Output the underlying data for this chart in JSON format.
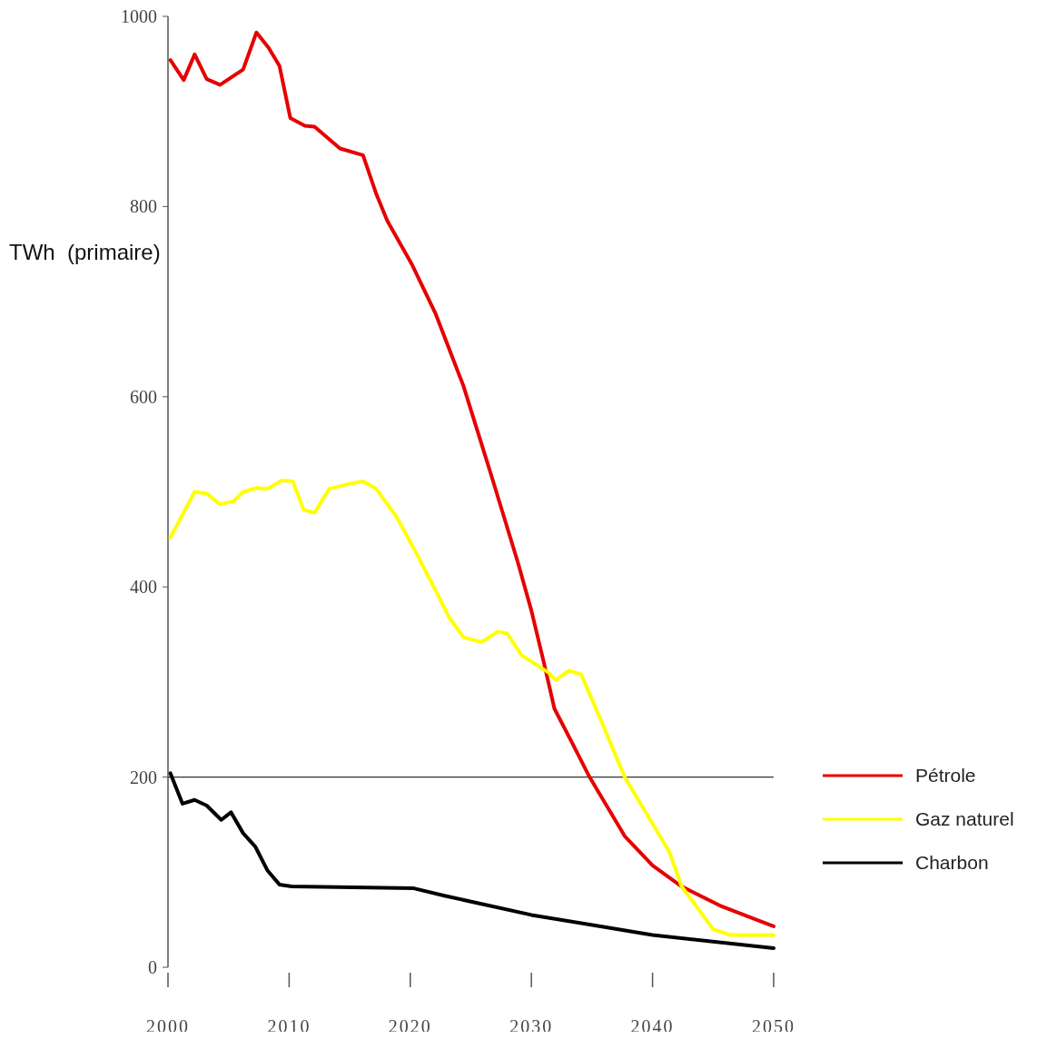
{
  "chart_data": {
    "type": "line",
    "ylabel": "TWh  (primaire)",
    "xlim": [
      2000,
      2050
    ],
    "xticks": [
      2000,
      2010,
      2020,
      2030,
      2040,
      2050
    ],
    "ylim": [
      0,
      1000
    ],
    "yticks": [
      0,
      200,
      400,
      600,
      800,
      1000
    ],
    "grid": false,
    "legend": "right",
    "marker": "none",
    "line_style": "solid",
    "ref_lines": [
      {
        "axis": "y",
        "value": 200,
        "color": "#333333"
      }
    ],
    "series": [
      {
        "name": "Pétrole",
        "color": "#e60000",
        "x": [
          2000.2,
          2001.3,
          2002.2,
          2003.2,
          2004.3,
          2006.2,
          2007.3,
          2008.3,
          2009.2,
          2010.1,
          2011.3,
          2012.1,
          2014.2,
          2016.1,
          2017.2,
          2018.1,
          2020.1,
          2022.1,
          2024.4,
          2026.6,
          2028.9,
          2030,
          2031,
          2031.9,
          2033.4,
          2034.8,
          2037.7,
          2040,
          2042.4,
          2045.7,
          2050
        ],
        "values": [
          954,
          933,
          960,
          934,
          928,
          944,
          983,
          967,
          948,
          893,
          885,
          884,
          861,
          854,
          813,
          785,
          740,
          687,
          611,
          521,
          425,
          375,
          322,
          272,
          235,
          200,
          138,
          107,
          85,
          64,
          43
        ]
      },
      {
        "name": "Gaz naturel",
        "color": "#ffff00",
        "x": [
          2000.2,
          2002.2,
          2003.2,
          2004.3,
          2005.4,
          2006.2,
          2007.3,
          2008.2,
          2009.4,
          2010.3,
          2011.2,
          2012.1,
          2013.3,
          2014.8,
          2016.1,
          2017.2,
          2018.9,
          2020.6,
          2022.1,
          2023.2,
          2024.4,
          2025.9,
          2026.4,
          2027.2,
          2028,
          2029.2,
          2031.4,
          2032,
          2033.1,
          2034.1,
          2035.8,
          2037.7,
          2040,
          2041.4,
          2042.4,
          2045,
          2046.4,
          2050
        ],
        "values": [
          452,
          500,
          498,
          487,
          490,
          500,
          504,
          503,
          512,
          511,
          481,
          478,
          503,
          508,
          511,
          503,
          473,
          433,
          396,
          368,
          347,
          342,
          346,
          353,
          351,
          328,
          310,
          302,
          312,
          308,
          258,
          200,
          151,
          121,
          85,
          40,
          34,
          34
        ]
      },
      {
        "name": "Charbon",
        "color": "#000000",
        "x": [
          2000.2,
          2001.2,
          2002.2,
          2003.2,
          2004.4,
          2005.2,
          2006.2,
          2007.2,
          2008.2,
          2009.2,
          2010.2,
          2020.3,
          2022.9,
          2030,
          2040,
          2050
        ],
        "values": [
          204,
          172,
          176,
          170,
          155,
          163,
          141,
          127,
          102,
          87,
          85,
          83,
          75,
          55,
          34,
          20
        ]
      }
    ]
  }
}
